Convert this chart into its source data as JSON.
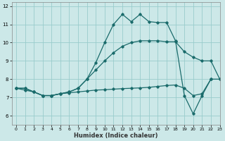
{
  "xlabel": "Humidex (Indice chaleur)",
  "xlim": [
    -0.5,
    23
  ],
  "ylim": [
    5.5,
    12.2
  ],
  "yticks": [
    6,
    7,
    8,
    9,
    10,
    11,
    12
  ],
  "xticks": [
    0,
    1,
    2,
    3,
    4,
    5,
    6,
    7,
    8,
    9,
    10,
    11,
    12,
    13,
    14,
    15,
    16,
    17,
    18,
    19,
    20,
    21,
    22,
    23
  ],
  "bg_color": "#cce8e8",
  "grid_color": "#99cccc",
  "line_color": "#1a6b6b",
  "curve_top": [
    7.5,
    7.5,
    7.3,
    7.1,
    7.1,
    7.2,
    7.3,
    7.5,
    8.0,
    8.9,
    10.0,
    11.0,
    11.55,
    11.15,
    11.55,
    11.15,
    11.1,
    11.1,
    10.1,
    7.1,
    6.1,
    7.1,
    8.0,
    null
  ],
  "curve_rise": [
    7.5,
    7.5,
    7.3,
    7.1,
    7.1,
    7.2,
    7.3,
    7.5,
    8.0,
    8.5,
    9.0,
    9.45,
    9.8,
    10.0,
    10.1,
    10.1,
    10.1,
    10.05,
    10.05,
    9.5,
    9.2,
    9.0,
    9.0,
    8.0
  ],
  "curve_flat": [
    7.5,
    7.4,
    7.3,
    7.1,
    7.1,
    7.2,
    7.25,
    7.3,
    7.35,
    7.4,
    7.42,
    7.45,
    7.48,
    7.5,
    7.52,
    7.55,
    7.6,
    7.65,
    7.68,
    7.5,
    7.1,
    7.2,
    8.0,
    8.0
  ]
}
